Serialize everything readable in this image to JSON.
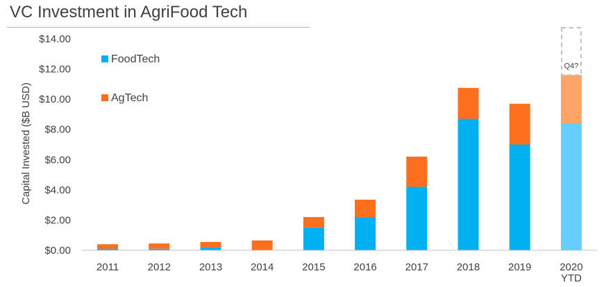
{
  "chart_data": {
    "type": "bar",
    "stacked": true,
    "title": "VC Investment in AgriFood Tech",
    "ylabel": "Capital Invested ($B USD)",
    "xlabel": "",
    "ylim": [
      0,
      14
    ],
    "yticks": [
      "$0.00",
      "$2.00",
      "$4.00",
      "$6.00",
      "$8.00",
      "$10.00",
      "$12.00",
      "$14.00"
    ],
    "categories": [
      "2011",
      "2012",
      "2013",
      "2014",
      "2015",
      "2016",
      "2017",
      "2018",
      "2019",
      "2020"
    ],
    "category_sublabels": [
      "",
      "",
      "",
      "",
      "",
      "",
      "",
      "",
      "",
      "YTD"
    ],
    "series": [
      {
        "name": "FoodTech",
        "color": "#00b0f0",
        "highlight_color": "#66cfff",
        "values": [
          0.1,
          0.1,
          0.2,
          0.0,
          1.5,
          2.2,
          4.2,
          8.7,
          7.0,
          8.4
        ]
      },
      {
        "name": "AgTech",
        "color": "#fd6f1d",
        "highlight_color": "#fda569",
        "values": [
          0.3,
          0.35,
          0.35,
          0.65,
          0.7,
          1.15,
          2.0,
          2.05,
          2.7,
          3.2
        ]
      }
    ],
    "highlight_category": "2020",
    "projection": {
      "category": "2020",
      "top_value": 14.0,
      "label": "Q4?",
      "style": "dashed-grey"
    },
    "legend": "top-left",
    "grid": false
  }
}
